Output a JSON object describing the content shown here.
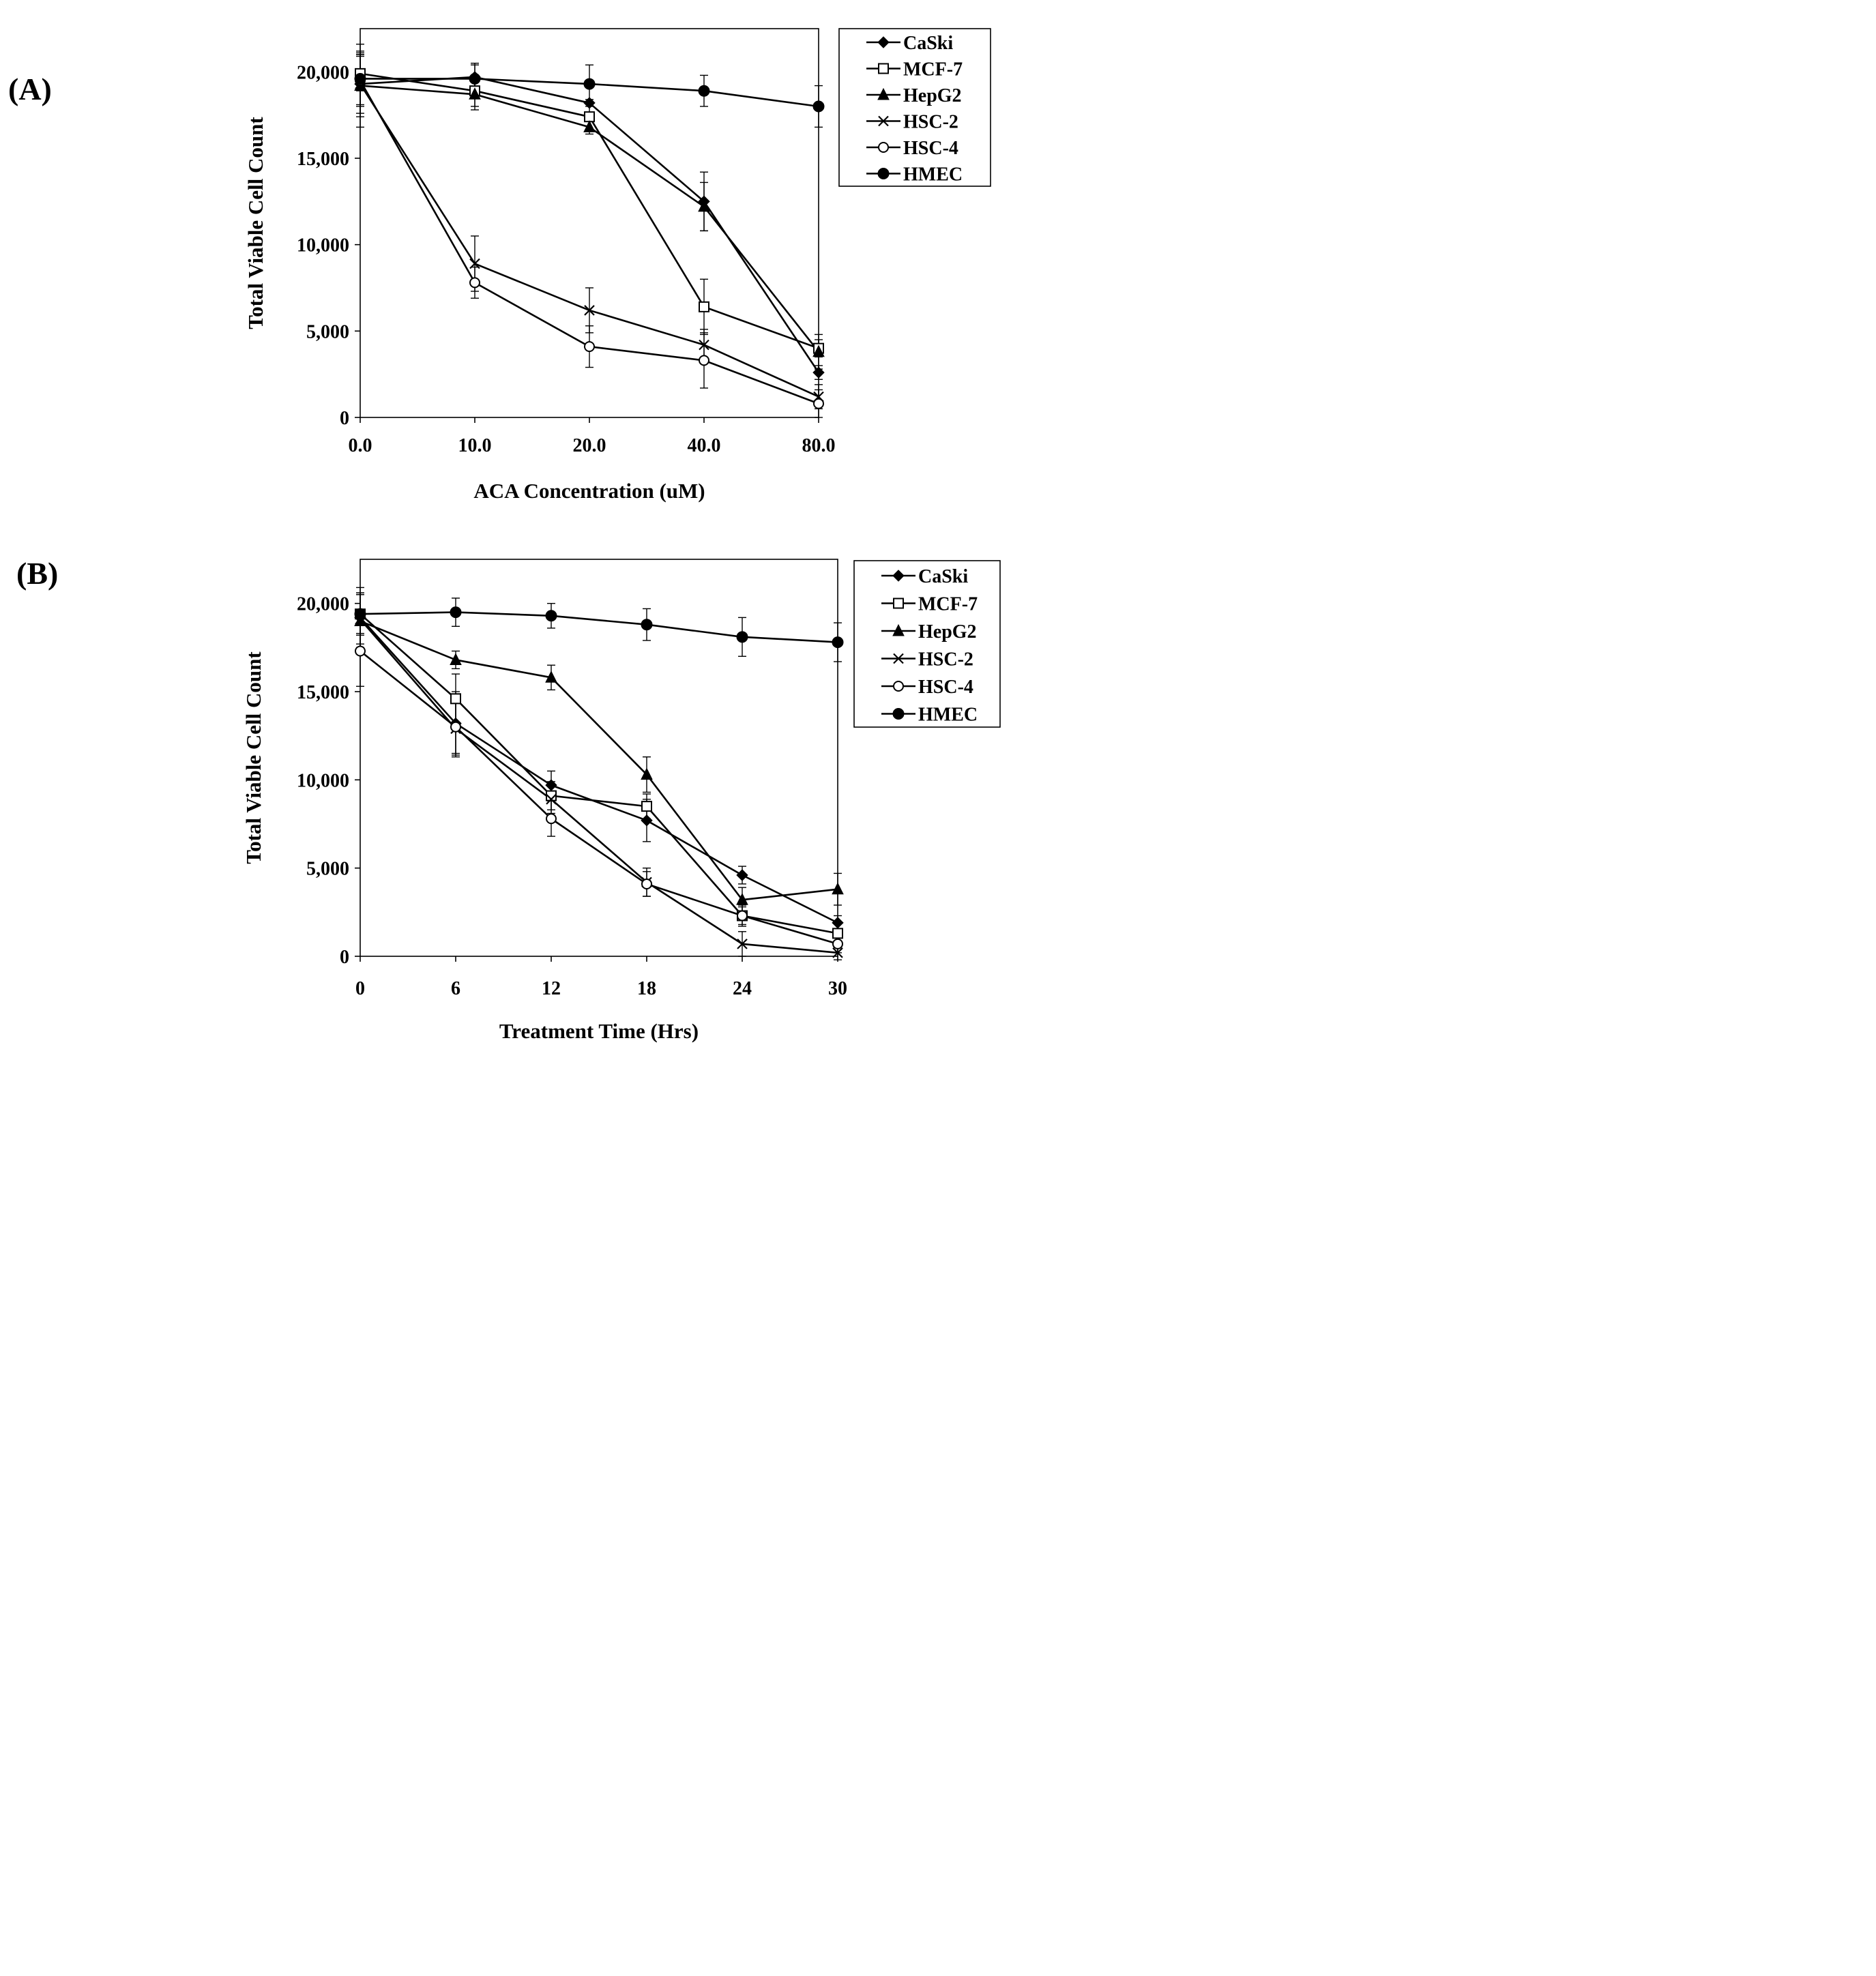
{
  "panels": [
    {
      "label": "(A)",
      "chart_data": {
        "type": "line",
        "title": "",
        "xlabel": "ACA Concentration (uM)",
        "ylabel": "Total Viable Cell Count",
        "x_scale": "categorical",
        "categories": [
          "0.0",
          "10.0",
          "20.0",
          "40.0",
          "80.0"
        ],
        "ylim": [
          0,
          22500
        ],
        "yticks": [
          0,
          5000,
          10000,
          15000,
          20000
        ],
        "ytick_labels": [
          "0",
          "5,000",
          "10,000",
          "15,000",
          "20,000"
        ],
        "legend_position": "outside-top-right",
        "grid": false,
        "series": [
          {
            "name": "CaSki",
            "marker": "diamond",
            "values": [
              19300,
              19700,
              18200,
              12500,
              2600
            ],
            "errors": [
              1700,
              700,
              200,
              1700,
              400
            ]
          },
          {
            "name": "MCF-7",
            "marker": "square-open",
            "values": [
              19900,
              18900,
              17400,
              6400,
              4000
            ],
            "errors": [
              1000,
              900,
              800,
              1600,
              500
            ]
          },
          {
            "name": "HepG2",
            "marker": "triangle",
            "values": [
              19200,
              18700,
              16800,
              12200,
              3800
            ],
            "errors": [
              2400,
              900,
              400,
              1400,
              1000
            ]
          },
          {
            "name": "HSC-2",
            "marker": "x",
            "values": [
              19300,
              8900,
              6200,
              4200,
              1200
            ],
            "errors": [
              1900,
              1600,
              1300,
              900,
              700
            ]
          },
          {
            "name": "HSC-4",
            "marker": "circle-open",
            "values": [
              19500,
              7800,
              4100,
              3300,
              800
            ],
            "errors": [
              1500,
              900,
              1200,
              1600,
              800
            ]
          },
          {
            "name": "HMEC",
            "marker": "circle",
            "values": [
              19600,
              19600,
              19300,
              18900,
              18000
            ],
            "errors": [
              1500,
              900,
              1100,
              900,
              1200
            ]
          }
        ]
      }
    },
    {
      "label": "(B)",
      "chart_data": {
        "type": "line",
        "title": "",
        "xlabel": "Treatment Time (Hrs)",
        "ylabel": "Total Viable Cell Count",
        "x_scale": "categorical",
        "categories": [
          "0",
          "6",
          "12",
          "18",
          "24",
          "30"
        ],
        "ylim": [
          0,
          22500
        ],
        "yticks": [
          0,
          5000,
          10000,
          15000,
          20000
        ],
        "ytick_labels": [
          "0",
          "5,000",
          "10,000",
          "15,000",
          "20,000"
        ],
        "legend_position": "outside-top-right",
        "grid": false,
        "series": [
          {
            "name": "CaSki",
            "marker": "diamond",
            "values": [
              19200,
              13200,
              9700,
              7700,
              4600,
              1900
            ],
            "errors": [
              1700,
              1800,
              800,
              1200,
              500,
              400
            ]
          },
          {
            "name": "MCF-7",
            "marker": "square-open",
            "values": [
              19400,
              14600,
              9100,
              8500,
              2300,
              1300
            ],
            "errors": [
              1200,
              1400,
              800,
              700,
              500,
              600
            ]
          },
          {
            "name": "HepG2",
            "marker": "triangle",
            "values": [
              19000,
              16800,
              15800,
              10300,
              3200,
              3800
            ],
            "errors": [
              1600,
              500,
              700,
              1000,
              700,
              900
            ]
          },
          {
            "name": "HSC-2",
            "marker": "x",
            "values": [
              19100,
              12900,
              8900,
              4200,
              700,
              200
            ],
            "errors": [
              1400,
              1600,
              800,
              800,
              700,
              400
            ]
          },
          {
            "name": "HSC-4",
            "marker": "circle-open",
            "values": [
              17300,
              13000,
              7800,
              4100,
              2300,
              700
            ],
            "errors": [
              2000,
              1500,
              1000,
              700,
              600,
              500
            ]
          },
          {
            "name": "HMEC",
            "marker": "circle",
            "values": [
              19400,
              19500,
              19300,
              18800,
              18100,
              17800
            ],
            "errors": [
              1100,
              800,
              700,
              900,
              1100,
              1100
            ]
          }
        ]
      }
    }
  ]
}
